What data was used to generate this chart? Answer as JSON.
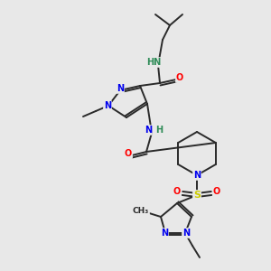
{
  "background_color": "#e8e8e8",
  "bond_color": "#2a2a2a",
  "atom_colors": {
    "N": "#0000ee",
    "O": "#ff0000",
    "S": "#cccc00",
    "C": "#2a2a2a",
    "H": "#2e8b57"
  },
  "figsize": [
    3.0,
    3.0
  ],
  "dpi": 100
}
